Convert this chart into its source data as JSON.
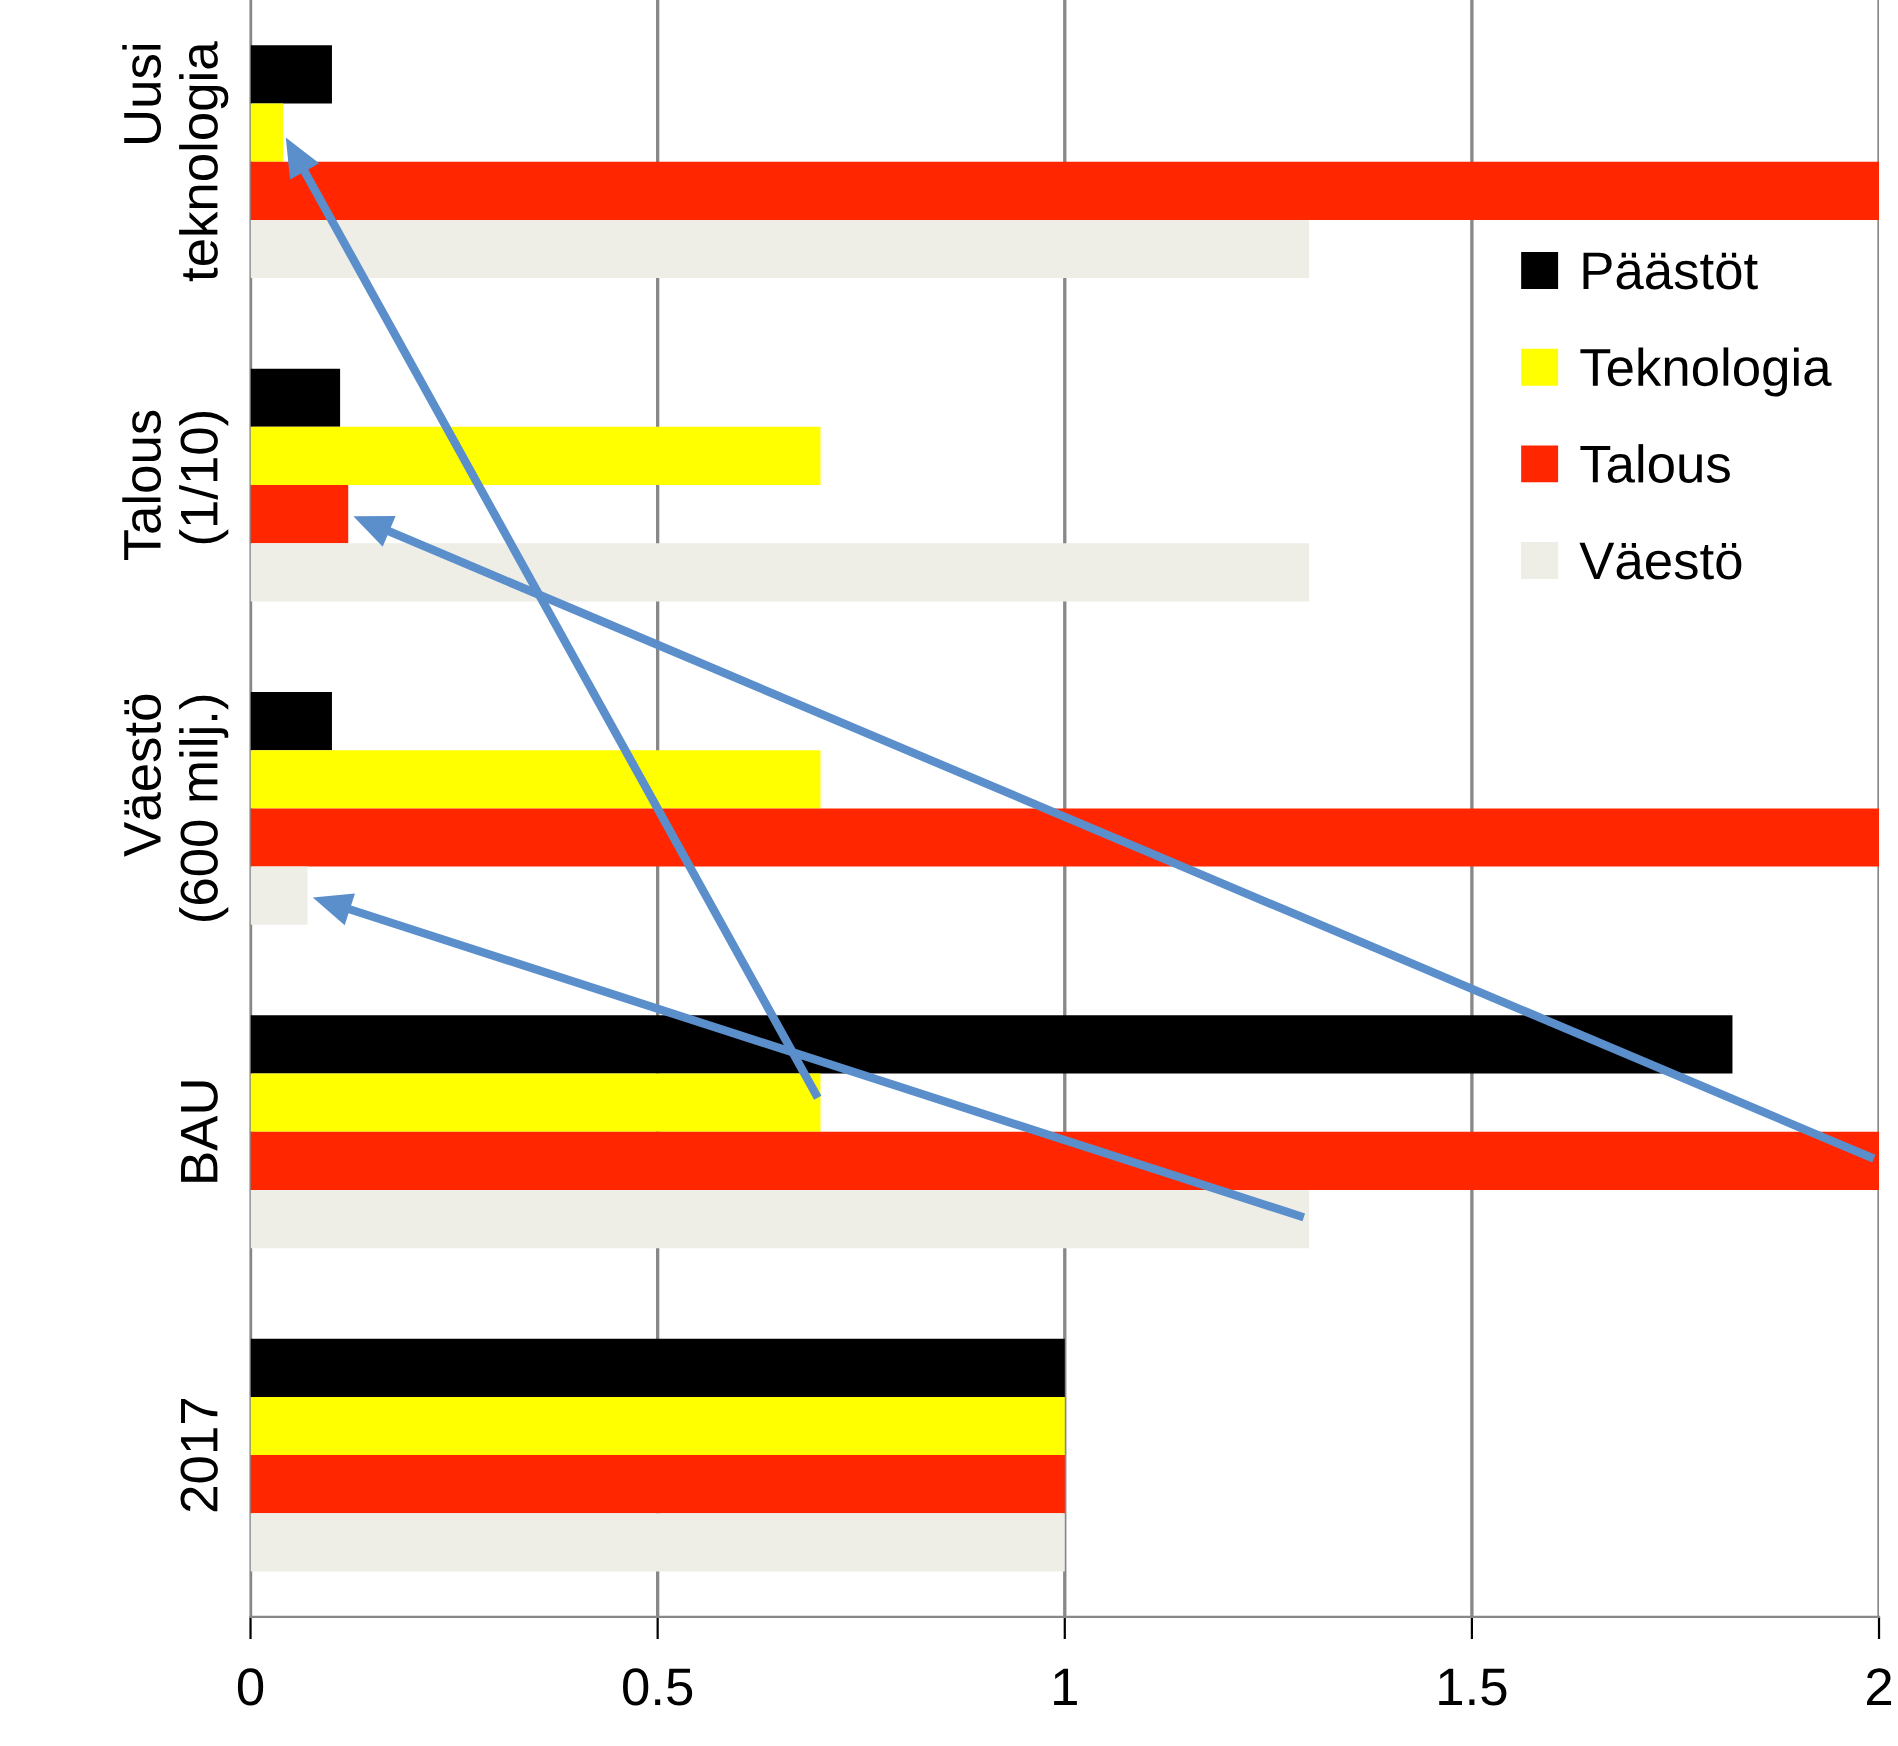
{
  "chart_data": {
    "type": "bar",
    "orientation": "horizontal",
    "categories": [
      "Uusi teknologia",
      "Talous (1/10)",
      "Väestö (600 milj.)",
      "BAU",
      "2017"
    ],
    "series": [
      {
        "name": "Päästöt",
        "color": "#000000",
        "values": [
          0.1,
          0.11,
          0.1,
          1.82,
          1
        ]
      },
      {
        "name": "Teknologia",
        "color": "#ffff00",
        "values": [
          0.04,
          0.7,
          0.7,
          0.7,
          1
        ]
      },
      {
        "name": "Talous",
        "color": "#ff2600",
        "values": [
          2,
          0.12,
          2,
          2,
          1
        ]
      },
      {
        "name": "Väestö",
        "color": "#eeede6",
        "values": [
          1.3,
          1.3,
          0.07,
          1.3,
          1
        ]
      }
    ],
    "xlim": [
      0,
      2
    ],
    "xticks": [
      0,
      0.5,
      1,
      1.5,
      2
    ],
    "grid": "x",
    "legend": "right"
  }
}
